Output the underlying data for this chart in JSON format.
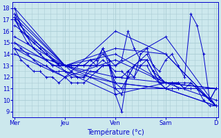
{
  "xlabel": "Température (°c)",
  "ylim": [
    8.5,
    18.5
  ],
  "xlim": [
    0,
    196
  ],
  "yticks": [
    9,
    10,
    11,
    12,
    13,
    14,
    15,
    16,
    17,
    18
  ],
  "day_labels": [
    "Mer",
    "Jeu",
    "Ven",
    "Sam",
    "D"
  ],
  "day_positions": [
    2,
    50,
    98,
    146,
    194
  ],
  "bg_color": "#cce8ed",
  "grid_color": "#aacdd4",
  "line_color": "#0000cc",
  "series": [
    {
      "x": [
        2,
        50,
        98,
        146,
        194
      ],
      "y": [
        18.0,
        13.0,
        13.0,
        15.5,
        9.5
      ]
    },
    {
      "x": [
        2,
        50,
        98,
        146,
        194
      ],
      "y": [
        17.5,
        13.0,
        11.0,
        11.0,
        9.5
      ]
    },
    {
      "x": [
        2,
        50,
        98,
        146,
        194
      ],
      "y": [
        17.2,
        13.0,
        11.5,
        11.0,
        9.5
      ]
    },
    {
      "x": [
        2,
        50,
        98,
        146,
        194
      ],
      "y": [
        17.0,
        12.5,
        11.5,
        11.0,
        11.0
      ]
    },
    {
      "x": [
        2,
        50,
        98,
        146,
        194
      ],
      "y": [
        16.5,
        13.0,
        14.0,
        11.5,
        11.0
      ]
    },
    {
      "x": [
        2,
        50,
        98,
        146,
        194
      ],
      "y": [
        15.5,
        13.0,
        12.0,
        11.5,
        11.0
      ]
    },
    {
      "x": [
        2,
        50,
        98,
        146,
        194
      ],
      "y": [
        15.0,
        12.5,
        10.5,
        11.5,
        10.0
      ]
    },
    {
      "x": [
        2,
        50,
        98,
        146,
        194
      ],
      "y": [
        14.5,
        13.0,
        14.5,
        14.0,
        9.5
      ]
    },
    {
      "x": [
        2,
        50,
        98,
        146,
        194
      ],
      "y": [
        14.5,
        12.0,
        16.0,
        14.0,
        9.5
      ]
    },
    {
      "x": [
        2,
        50,
        98,
        146,
        194
      ],
      "y": [
        14.0,
        12.0,
        13.5,
        11.5,
        11.0
      ]
    }
  ],
  "detailed_series": [
    {
      "x": [
        2,
        8,
        14,
        20,
        26,
        32,
        38,
        44,
        50,
        56,
        62,
        68,
        74,
        80,
        86,
        92,
        98,
        104,
        110,
        116,
        122,
        128,
        134,
        140,
        146,
        152,
        158,
        164,
        170,
        176,
        182,
        188,
        194
      ],
      "y": [
        17.5,
        16.5,
        15.5,
        15.0,
        14.5,
        14.0,
        13.5,
        13.2,
        13.0,
        13.0,
        13.0,
        13.0,
        13.5,
        13.5,
        14.0,
        13.5,
        13.0,
        13.5,
        16.0,
        14.5,
        13.5,
        13.5,
        12.5,
        12.0,
        11.5,
        11.5,
        11.5,
        11.5,
        11.5,
        11.0,
        10.5,
        10.0,
        9.5
      ]
    },
    {
      "x": [
        2,
        8,
        14,
        20,
        26,
        32,
        38,
        44,
        50,
        56,
        62,
        68,
        74,
        80,
        86,
        92,
        98,
        104,
        110,
        116,
        122,
        128,
        134,
        140,
        146,
        152,
        158,
        164,
        170,
        176,
        182,
        188,
        194
      ],
      "y": [
        17.0,
        16.0,
        15.5,
        14.5,
        14.0,
        13.5,
        13.0,
        13.0,
        13.0,
        13.0,
        13.0,
        13.0,
        13.0,
        13.5,
        14.5,
        13.5,
        11.0,
        10.5,
        12.0,
        13.0,
        13.0,
        13.0,
        12.0,
        11.5,
        11.0,
        11.5,
        11.0,
        11.0,
        11.5,
        11.0,
        10.0,
        9.5,
        9.5
      ]
    },
    {
      "x": [
        2,
        8,
        14,
        20,
        26,
        32,
        38,
        44,
        50,
        56,
        62,
        68,
        74,
        80,
        86,
        92,
        98,
        104,
        110,
        116,
        122,
        128,
        134,
        140,
        146,
        152,
        158,
        164,
        170,
        176,
        182,
        188,
        194
      ],
      "y": [
        18.0,
        16.5,
        15.5,
        15.0,
        14.5,
        14.0,
        13.5,
        13.0,
        13.0,
        13.0,
        13.0,
        13.0,
        13.5,
        13.0,
        14.5,
        13.0,
        10.5,
        9.0,
        12.5,
        12.0,
        14.0,
        14.5,
        13.0,
        12.5,
        13.5,
        14.0,
        13.0,
        12.0,
        17.5,
        16.5,
        14.0,
        10.0,
        9.5
      ]
    },
    {
      "x": [
        2,
        8,
        14,
        20,
        26,
        32,
        38,
        44,
        50,
        56,
        62,
        68,
        74,
        80,
        86,
        92,
        98,
        104,
        110,
        116,
        122,
        128,
        134,
        140,
        146,
        152,
        158,
        164,
        170,
        176,
        182,
        188,
        194
      ],
      "y": [
        17.2,
        16.0,
        15.0,
        14.5,
        14.0,
        13.5,
        13.0,
        13.0,
        13.0,
        12.5,
        12.0,
        12.0,
        13.0,
        13.0,
        13.5,
        13.0,
        11.5,
        11.0,
        12.0,
        13.0,
        13.5,
        13.5,
        12.5,
        11.5,
        11.0,
        11.0,
        11.0,
        11.0,
        11.0,
        11.0,
        10.5,
        10.0,
        9.5
      ]
    },
    {
      "x": [
        2,
        8,
        14,
        20,
        26,
        32,
        38,
        44,
        50,
        56,
        62,
        68,
        74,
        80,
        86,
        92,
        98,
        104,
        110,
        116,
        122,
        128,
        134,
        140,
        146,
        152,
        158,
        164,
        170,
        176,
        182,
        188,
        194
      ],
      "y": [
        15.0,
        14.5,
        14.0,
        13.5,
        13.0,
        13.0,
        12.5,
        12.5,
        12.5,
        12.0,
        12.0,
        12.0,
        12.5,
        12.5,
        13.0,
        13.0,
        12.0,
        12.0,
        12.5,
        13.0,
        13.5,
        14.0,
        13.0,
        12.0,
        11.5,
        11.5,
        11.5,
        11.0,
        11.0,
        11.0,
        10.5,
        10.0,
        11.0
      ]
    },
    {
      "x": [
        2,
        8,
        14,
        20,
        26,
        32,
        38,
        44,
        50,
        56,
        62,
        68,
        74,
        80,
        86,
        92,
        98,
        104,
        110,
        116,
        122,
        128,
        134,
        140,
        146,
        152,
        158,
        164,
        170,
        176,
        182,
        188,
        194
      ],
      "y": [
        14.5,
        13.5,
        13.0,
        12.5,
        12.5,
        12.0,
        12.0,
        11.5,
        12.0,
        11.5,
        11.5,
        11.5,
        12.0,
        12.5,
        13.0,
        13.0,
        12.5,
        12.5,
        12.0,
        12.0,
        13.0,
        13.5,
        12.5,
        11.5,
        11.5,
        11.5,
        11.5,
        11.0,
        11.0,
        11.0,
        10.5,
        10.0,
        11.0
      ]
    }
  ]
}
